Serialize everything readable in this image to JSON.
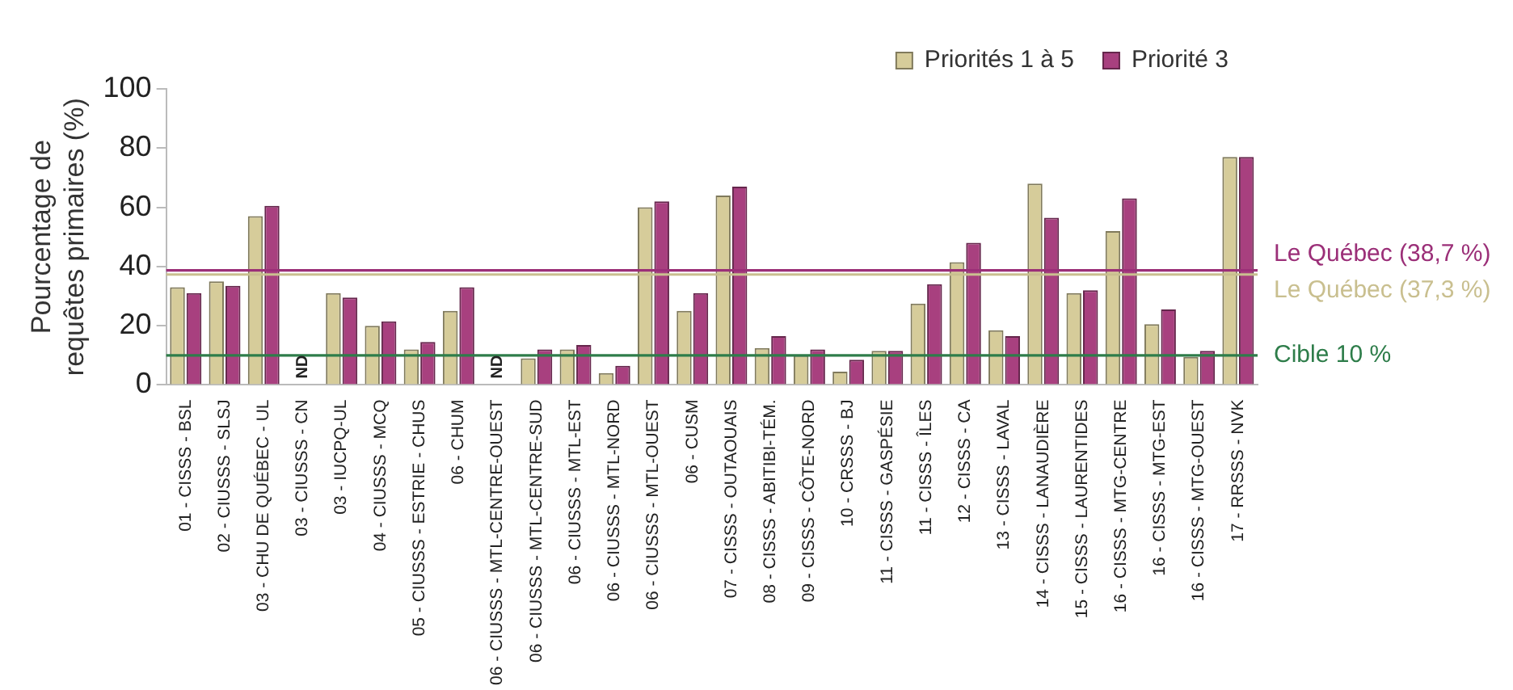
{
  "chart_data": {
    "type": "bar",
    "ylabel": "Pourcentage de\nrequêtes primaires (%)",
    "categories": [
      "01 - CISSS - BSL",
      "02 - CIUSSS - SLSJ",
      "03 - CHU DE QUÉBEC - UL",
      "03 - CIUSSS - CN",
      "03 - IUCPQ-UL",
      "04 - CIUSSS - MCQ",
      "05 - CIUSSS - ESTRIE - CHUS",
      "06 - CHUM",
      "06 - CIUSSS - MTL-CENTRE-OUEST",
      "06 - CIUSSS - MTL-CENTRE-SUD",
      "06 - CIUSSS - MTL-EST",
      "06 - CIUSSS - MTL-NORD",
      "06 - CIUSSS - MTL-OUEST",
      "06 - CUSM",
      "07 - CISSS - OUTAOUAIS",
      "08 - CISSS - ABITIBI-TÉM.",
      "09 - CISSS - CÔTE-NORD",
      "10 - CRSSS - BJ",
      "11 - CISSS - GASPÉSIE",
      "11 - CISSS - ÎLES",
      "12 - CISSS - CA",
      "13 - CISSS - LAVAL",
      "14 - CISSS - LANAUDIÈRE",
      "15 - CISSS - LAURENTIDES",
      "16 - CISSS - MTG-CENTRE",
      "16 - CISSS - MTG-EST",
      "16 - CISSS - MTG-OUEST",
      "17 - RRSSS - NVK"
    ],
    "series": [
      {
        "name": "Priorités 1 à 5",
        "color": "#d6cc9a",
        "values": [
          33,
          35,
          57,
          null,
          31,
          20,
          12,
          25,
          null,
          9,
          12,
          4,
          60,
          25,
          64,
          12.5,
          10,
          4.5,
          11.5,
          27.5,
          41.5,
          18.5,
          68,
          31,
          52,
          20.5,
          9.5,
          77
        ]
      },
      {
        "name": "Priorité 3",
        "color": "#a8407f",
        "values": [
          31,
          33.5,
          60.5,
          null,
          29.5,
          21.5,
          14.5,
          33,
          null,
          12,
          13.5,
          6.5,
          62,
          31,
          67,
          16.5,
          12,
          8.5,
          11.5,
          34,
          48,
          16.5,
          56.5,
          32,
          63,
          25.5,
          11.5,
          77
        ]
      }
    ],
    "ylim": [
      0,
      100
    ],
    "yticks": [
      0,
      20,
      40,
      60,
      80,
      100
    ],
    "grid": false,
    "legend": "top right",
    "ref_lines": [
      {
        "axis": "y",
        "value": 38.7,
        "label": "Le Québec (38,7 %)",
        "color": "#9b2f78"
      },
      {
        "axis": "y",
        "value": 37.3,
        "label": "Le Québec (37,3 %)",
        "color": "#c9bf8f"
      },
      {
        "axis": "y",
        "value": 10,
        "label": "Cible 10 %",
        "color": "#2e7d4a"
      }
    ],
    "annotations": [
      "ND",
      "ND"
    ]
  }
}
